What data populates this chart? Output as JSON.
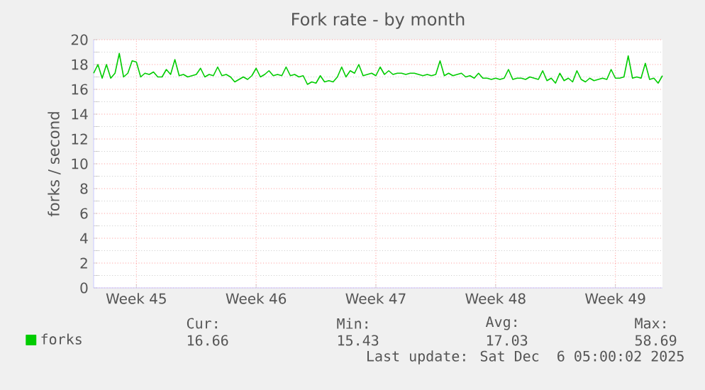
{
  "chart_data": {
    "type": "line",
    "title": "Fork rate - by month",
    "ylabel": "forks / second",
    "categories": [
      null,
      null,
      null,
      null,
      null,
      null,
      null,
      null,
      null,
      null,
      "Week 45",
      null,
      null,
      null,
      null,
      null,
      null,
      null,
      null,
      null,
      null,
      null,
      null,
      null,
      null,
      null,
      null,
      null,
      null,
      null,
      null,
      null,
      null,
      null,
      null,
      null,
      null,
      null,
      "Week 46",
      null,
      null,
      null,
      null,
      null,
      null,
      null,
      null,
      null,
      null,
      null,
      null,
      null,
      null,
      null,
      null,
      null,
      null,
      null,
      null,
      null,
      null,
      null,
      null,
      null,
      null,
      null,
      "Week 47",
      null,
      null,
      null,
      null,
      null,
      null,
      null,
      null,
      null,
      null,
      null,
      null,
      null,
      null,
      null,
      null,
      null,
      null,
      null,
      null,
      null,
      null,
      null,
      null,
      null,
      null,
      null,
      "Week 48",
      null,
      null,
      null,
      null,
      null,
      null,
      null,
      null,
      null,
      null,
      null,
      null,
      null,
      null,
      null,
      null,
      null,
      null,
      null,
      null,
      null,
      null,
      null,
      null,
      null,
      null,
      null,
      "Week 49",
      null,
      null,
      null,
      null,
      null,
      null,
      null,
      null,
      null,
      null,
      null
    ],
    "ylim": [
      0,
      20
    ],
    "yticks": [
      0,
      2,
      4,
      6,
      8,
      10,
      12,
      14,
      16,
      18,
      20
    ],
    "grid": true,
    "legend": "bottom",
    "marker": "none",
    "line_style": "solid",
    "series": [
      {
        "name": "forks",
        "color": "#00cc00",
        "values": [
          17.3,
          18.0,
          16.9,
          18.0,
          16.9,
          17.3,
          18.9,
          17.0,
          17.3,
          18.3,
          18.2,
          17.0,
          17.3,
          17.2,
          17.4,
          17.0,
          17.0,
          17.6,
          17.2,
          18.4,
          17.1,
          17.2,
          17.0,
          17.1,
          17.2,
          17.7,
          17.0,
          17.2,
          17.1,
          17.8,
          17.1,
          17.2,
          17.0,
          16.6,
          16.8,
          17.0,
          16.8,
          17.1,
          17.7,
          17.0,
          17.2,
          17.5,
          17.1,
          17.2,
          17.1,
          17.8,
          17.1,
          17.2,
          17.0,
          17.1,
          16.4,
          16.6,
          16.5,
          17.1,
          16.6,
          16.7,
          16.6,
          17.0,
          17.8,
          17.0,
          17.5,
          17.3,
          18.0,
          17.1,
          17.2,
          17.3,
          17.1,
          17.8,
          17.2,
          17.5,
          17.2,
          17.3,
          17.3,
          17.2,
          17.3,
          17.3,
          17.2,
          17.1,
          17.2,
          17.1,
          17.2,
          18.3,
          17.1,
          17.3,
          17.1,
          17.2,
          17.3,
          17.0,
          17.1,
          16.9,
          17.3,
          16.9,
          16.9,
          16.8,
          16.9,
          16.8,
          16.9,
          17.6,
          16.8,
          16.9,
          16.9,
          16.8,
          17.0,
          16.9,
          16.8,
          17.5,
          16.7,
          16.9,
          16.5,
          17.3,
          16.7,
          16.9,
          16.6,
          17.5,
          16.8,
          16.6,
          16.9,
          16.7,
          16.8,
          16.9,
          16.8,
          17.6,
          16.9,
          16.9,
          17.0,
          18.7,
          16.9,
          17.0,
          16.9,
          18.1,
          16.8,
          16.9,
          16.5,
          17.1
        ]
      }
    ],
    "annotations": [
      "Cur:",
      "Min:",
      "Avg:",
      "Max:",
      "16.66",
      "15.43",
      "17.03",
      "58.69",
      "Last update: Sat Dec  6 05:00:02 2025"
    ]
  }
}
